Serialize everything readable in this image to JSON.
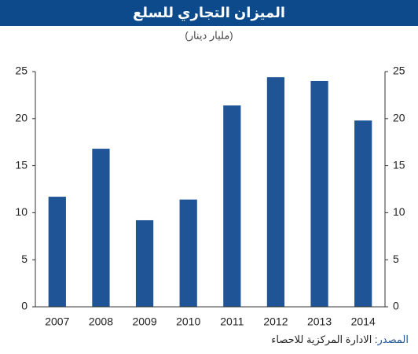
{
  "chart_data": {
    "type": "bar",
    "title": "الميزان التجاري للسلع",
    "subtitle": "(مليار دينار)",
    "categories": [
      "2007",
      "2008",
      "2009",
      "2010",
      "2011",
      "2012",
      "2013",
      "2014"
    ],
    "values": [
      11.7,
      16.8,
      9.2,
      11.4,
      21.4,
      24.4,
      24.0,
      19.8
    ],
    "color": "#1f5597",
    "ylim": [
      0,
      25
    ],
    "yticks": [
      0,
      5,
      10,
      15,
      20,
      25
    ],
    "grid": false,
    "source_label": "المصدر",
    "source_text": ": الادارة المركزية للاحصاء"
  }
}
